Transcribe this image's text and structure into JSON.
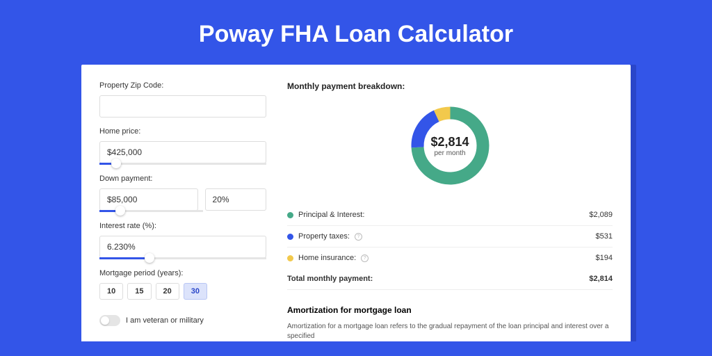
{
  "header": {
    "title": "Poway FHA Loan Calculator"
  },
  "form": {
    "zip": {
      "label": "Property Zip Code:",
      "value": ""
    },
    "home_price": {
      "label": "Home price:",
      "value": "$425,000",
      "slider_pct": 10
    },
    "down_payment": {
      "label": "Down payment:",
      "amount": "$85,000",
      "percent": "20%",
      "slider_pct": 20
    },
    "interest": {
      "label": "Interest rate (%):",
      "value": "6.230%",
      "slider_pct": 30
    },
    "period": {
      "label": "Mortgage period (years):",
      "options": [
        "10",
        "15",
        "20",
        "30"
      ],
      "selected": "30"
    },
    "veteran": {
      "label": "I am veteran or military"
    }
  },
  "breakdown": {
    "title": "Monthly payment breakdown:",
    "donut": {
      "amount": "$2,814",
      "sub": "per month",
      "slices": [
        {
          "label": "Principal & Interest:",
          "value": "$2,089",
          "color": "#45a988",
          "pct": 74.2
        },
        {
          "label": "Property taxes:",
          "value": "$531",
          "color": "#3355e8",
          "pct": 18.9,
          "info": true
        },
        {
          "label": "Home insurance:",
          "value": "$194",
          "color": "#f2c94c",
          "pct": 6.9,
          "info": true
        }
      ]
    },
    "total": {
      "label": "Total monthly payment:",
      "value": "$2,814"
    }
  },
  "amort": {
    "title": "Amortization for mortgage loan",
    "text": "Amortization for a mortgage loan refers to the gradual repayment of the loan principal and interest over a specified"
  },
  "colors": {
    "page_bg": "#3355e8",
    "card_shadow": "#2a46c9"
  }
}
